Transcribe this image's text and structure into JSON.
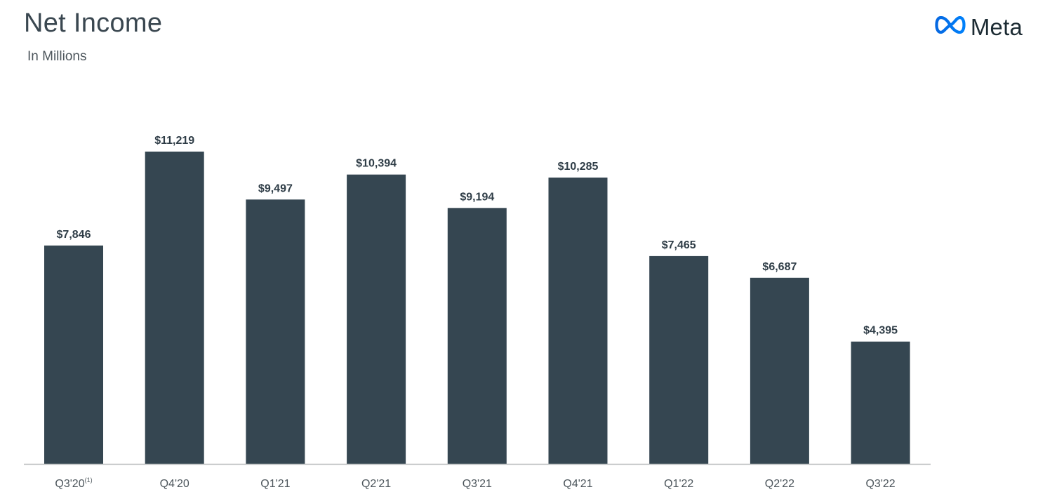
{
  "header": {
    "title": "Net Income",
    "subtitle": "In Millions",
    "brand_name": "Meta",
    "brand_icon": "meta-infinity-logo-icon"
  },
  "colors": {
    "bar": "#354651",
    "axis": "#b9bcbe",
    "logo_gradient_start": "#0668e1",
    "logo_gradient_end": "#0081fb"
  },
  "chart_data": {
    "type": "bar",
    "title": "Net Income",
    "subtitle": "In Millions",
    "xlabel": "",
    "ylabel": "",
    "categories": [
      "Q3'20",
      "Q4'20",
      "Q1'21",
      "Q2'21",
      "Q3'21",
      "Q4'21",
      "Q1'22",
      "Q2'22",
      "Q3'22"
    ],
    "category_footnotes": [
      "(1)",
      "",
      "",
      "",
      "",
      "",
      "",
      "",
      ""
    ],
    "values": [
      7846,
      11219,
      9497,
      10394,
      9194,
      10285,
      7465,
      6687,
      4395
    ],
    "value_labels": [
      "$7,846",
      "$11,219",
      "$9,497",
      "$10,394",
      "$9,194",
      "$10,285",
      "$7,465",
      "$6,687",
      "$4,395"
    ],
    "ylim": [
      0,
      11219
    ],
    "grid": false,
    "legend": "none"
  }
}
